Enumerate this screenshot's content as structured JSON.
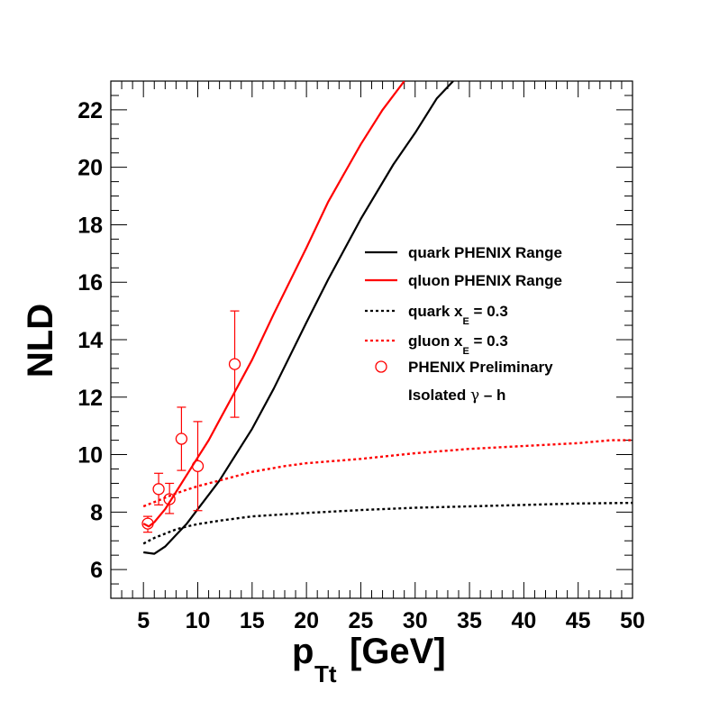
{
  "chart_data": {
    "type": "line",
    "title": "",
    "xlabel": "p",
    "xlabel_subscript": "Tt",
    "xlabel_unit": "[GeV]",
    "ylabel": "NLD",
    "xlim": [
      2,
      50
    ],
    "ylim": [
      5,
      23
    ],
    "x_ticks": [
      5,
      10,
      15,
      20,
      25,
      30,
      35,
      40,
      45,
      50
    ],
    "y_ticks": [
      6,
      8,
      10,
      12,
      14,
      16,
      18,
      20,
      22
    ],
    "grid": false,
    "legend_position": "center-right",
    "series": [
      {
        "name": "quark PHENIX Range",
        "color": "#000000",
        "style": "solid",
        "x": [
          5,
          6,
          7,
          8,
          9,
          10,
          11,
          12,
          13,
          15,
          17,
          20,
          22,
          25,
          28,
          30,
          32,
          33.5
        ],
        "y": [
          6.6,
          6.55,
          6.8,
          7.2,
          7.6,
          8.1,
          8.6,
          9.1,
          9.7,
          10.9,
          12.3,
          14.6,
          16.1,
          18.2,
          20.1,
          21.2,
          22.4,
          23.0
        ]
      },
      {
        "name": "qluon PHENIX Range",
        "color": "#ff0000",
        "style": "solid",
        "x": [
          5,
          5.5,
          6,
          7,
          8,
          9,
          10,
          11,
          12,
          13,
          15,
          17,
          20,
          22,
          25,
          27,
          29
        ],
        "y": [
          7.6,
          7.5,
          7.65,
          8.1,
          8.7,
          9.3,
          9.9,
          10.5,
          11.2,
          11.9,
          13.3,
          14.9,
          17.2,
          18.8,
          20.8,
          22.0,
          23.0
        ]
      },
      {
        "name": "quark x_E = 0.3",
        "color": "#000000",
        "style": "dashed",
        "x": [
          5,
          6,
          7,
          8,
          9,
          10,
          12,
          15,
          20,
          25,
          30,
          35,
          40,
          45,
          50
        ],
        "y": [
          6.9,
          7.1,
          7.25,
          7.4,
          7.5,
          7.58,
          7.7,
          7.85,
          7.97,
          8.07,
          8.15,
          8.2,
          8.25,
          8.3,
          8.32
        ]
      },
      {
        "name": "gluon x_E = 0.3",
        "color": "#ff0000",
        "style": "dashed",
        "x": [
          5,
          6,
          7,
          8,
          9,
          10,
          12,
          15,
          18,
          20,
          25,
          30,
          35,
          40,
          45,
          48,
          50
        ],
        "y": [
          8.2,
          8.35,
          8.5,
          8.65,
          8.78,
          8.9,
          9.1,
          9.4,
          9.6,
          9.7,
          9.85,
          10.05,
          10.2,
          10.3,
          10.4,
          10.5,
          10.5
        ]
      }
    ],
    "points": {
      "name": "PHENIX Preliminary",
      "name_line2": "Isolated",
      "name_line2_symbol": "γ",
      "name_line2_suffix": "– h",
      "color": "#ff0000",
      "marker": "open-circle",
      "x": [
        5.4,
        6.4,
        7.4,
        8.5,
        10.0,
        13.4
      ],
      "y": [
        7.6,
        8.8,
        8.45,
        10.55,
        9.6,
        13.15
      ],
      "err_low": [
        0.3,
        0.55,
        0.5,
        1.1,
        1.55,
        1.85
      ],
      "err_high": [
        0.25,
        0.55,
        0.55,
        1.1,
        1.55,
        1.85
      ]
    },
    "legend": [
      {
        "label": "quark PHENIX Range",
        "symbol": "line",
        "color": "#000000",
        "dashed": false
      },
      {
        "label": "qluon PHENIX Range",
        "symbol": "line",
        "color": "#ff0000",
        "dashed": false
      },
      {
        "label": "quark x",
        "sub": "E",
        "suffix": " = 0.3",
        "symbol": "line",
        "color": "#000000",
        "dashed": true
      },
      {
        "label": "gluon x",
        "sub": "E",
        "suffix": " = 0.3",
        "symbol": "line",
        "color": "#ff0000",
        "dashed": true
      },
      {
        "label": "PHENIX Preliminary",
        "symbol": "circle",
        "color": "#ff0000",
        "dashed": false
      }
    ]
  }
}
